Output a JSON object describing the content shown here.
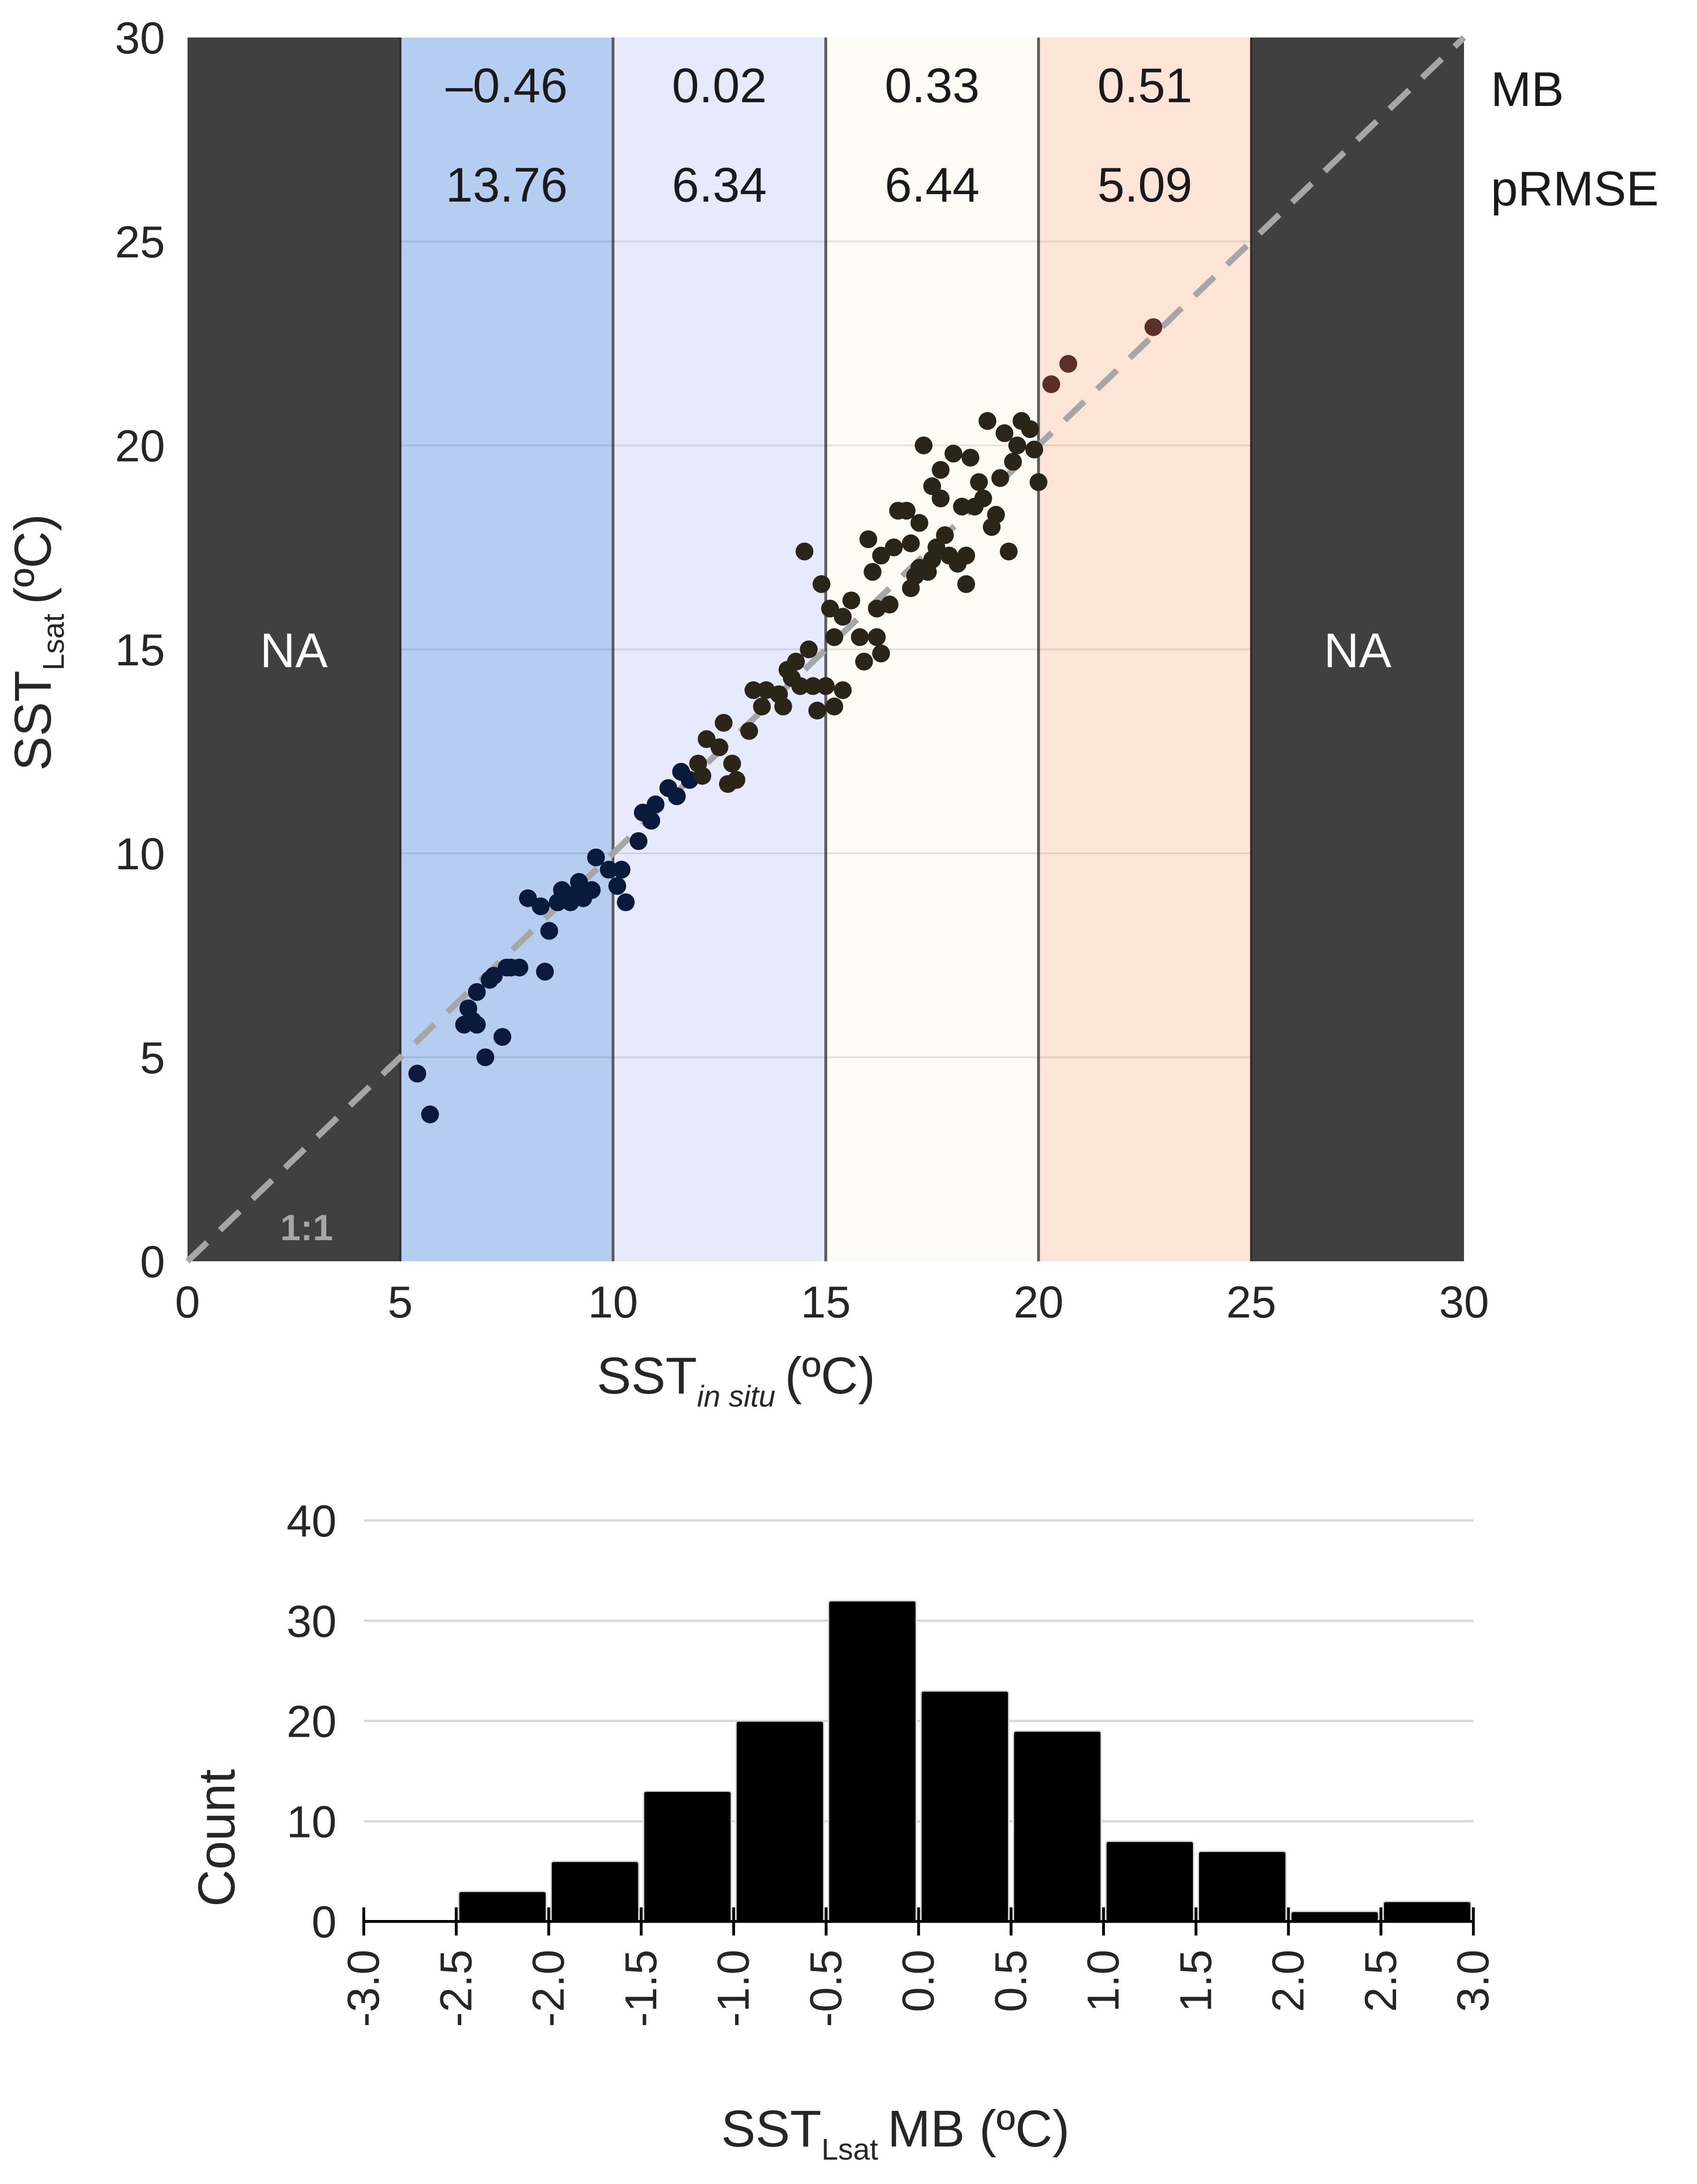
{
  "chart_data": [
    {
      "type": "scatter",
      "title": "",
      "xlabel": {
        "main": "SST",
        "sub": "in situ",
        "unit": "(ºC)"
      },
      "ylabel": {
        "main": "SST",
        "sub": "Lsat",
        "unit": "(ºC)"
      },
      "xlim": [
        0,
        30
      ],
      "ylim": [
        0,
        30
      ],
      "xticks": [
        "0",
        "5",
        "10",
        "15",
        "20",
        "25",
        "30"
      ],
      "yticks": [
        "0",
        "5",
        "10",
        "15",
        "20",
        "25",
        "30"
      ],
      "grid": true,
      "bands": [
        {
          "range": [
            0,
            5
          ],
          "color": "#404040",
          "label": "NA"
        },
        {
          "range": [
            5,
            10
          ],
          "color": "#b4cdf0",
          "mb": "–0.46",
          "prmse": "13.76"
        },
        {
          "range": [
            10,
            15
          ],
          "color": "#e7e9fc",
          "mb": "0.02",
          "prmse": "6.34"
        },
        {
          "range": [
            15,
            20
          ],
          "color": "#fcfbf4",
          "mb": "0.33",
          "prmse": "6.44"
        },
        {
          "range": [
            20,
            25
          ],
          "color": "#fce4d6",
          "mb": "0.51",
          "prmse": "5.09"
        },
        {
          "range": [
            25,
            30
          ],
          "color": "#404040",
          "label": "NA"
        }
      ],
      "row_labels": [
        "MB",
        "pRMSE"
      ],
      "reference_line": {
        "label": "1:1",
        "color": "#a6a6a6"
      },
      "colors": {
        "cold": "#0a1a3d",
        "warm": "#2b2419",
        "hot": "#5a3028"
      },
      "points": [
        [
          5.4,
          4.6
        ],
        [
          5.7,
          3.6
        ],
        [
          6.5,
          5.8
        ],
        [
          6.6,
          6.2
        ],
        [
          6.7,
          5.9
        ],
        [
          6.8,
          5.8
        ],
        [
          6.8,
          6.6
        ],
        [
          7.0,
          5.0
        ],
        [
          7.1,
          6.9
        ],
        [
          7.2,
          7.0
        ],
        [
          7.4,
          5.5
        ],
        [
          7.5,
          7.2
        ],
        [
          7.6,
          7.2
        ],
        [
          7.8,
          7.2
        ],
        [
          8.0,
          8.9
        ],
        [
          8.3,
          8.7
        ],
        [
          8.4,
          7.1
        ],
        [
          8.5,
          8.1
        ],
        [
          8.7,
          8.8
        ],
        [
          8.8,
          9.1
        ],
        [
          9.0,
          8.8
        ],
        [
          9.1,
          9.0
        ],
        [
          9.2,
          9.3
        ],
        [
          9.3,
          8.9
        ],
        [
          9.5,
          9.1
        ],
        [
          9.6,
          9.9
        ],
        [
          9.9,
          9.6
        ],
        [
          10.1,
          9.2
        ],
        [
          10.2,
          9.6
        ],
        [
          10.3,
          8.8
        ],
        [
          10.6,
          10.3
        ],
        [
          10.7,
          11.0
        ],
        [
          10.9,
          10.8
        ],
        [
          11.0,
          11.2
        ],
        [
          11.3,
          11.6
        ],
        [
          11.5,
          11.4
        ],
        [
          11.6,
          12.0
        ],
        [
          11.8,
          11.8
        ],
        [
          12.0,
          12.2
        ],
        [
          12.1,
          11.9
        ],
        [
          12.2,
          12.8
        ],
        [
          12.5,
          12.6
        ],
        [
          12.6,
          13.2
        ],
        [
          12.7,
          11.7
        ],
        [
          12.8,
          12.2
        ],
        [
          12.9,
          11.8
        ],
        [
          13.2,
          13.0
        ],
        [
          13.3,
          14.0
        ],
        [
          13.5,
          13.6
        ],
        [
          13.6,
          14.0
        ],
        [
          13.9,
          13.9
        ],
        [
          14.0,
          13.6
        ],
        [
          14.1,
          14.5
        ],
        [
          14.2,
          14.3
        ],
        [
          14.3,
          14.7
        ],
        [
          14.4,
          14.1
        ],
        [
          14.5,
          17.4
        ],
        [
          14.6,
          15.0
        ],
        [
          14.7,
          14.1
        ],
        [
          14.8,
          13.5
        ],
        [
          14.9,
          16.6
        ],
        [
          15.0,
          14.1
        ],
        [
          15.1,
          16.0
        ],
        [
          15.2,
          13.6
        ],
        [
          15.2,
          15.3
        ],
        [
          15.4,
          15.8
        ],
        [
          15.4,
          14.0
        ],
        [
          15.6,
          16.2
        ],
        [
          15.8,
          15.3
        ],
        [
          15.9,
          14.7
        ],
        [
          16.0,
          17.7
        ],
        [
          16.1,
          16.9
        ],
        [
          16.2,
          15.3
        ],
        [
          16.2,
          16.0
        ],
        [
          16.3,
          17.3
        ],
        [
          16.3,
          14.9
        ],
        [
          16.5,
          16.1
        ],
        [
          16.6,
          17.5
        ],
        [
          16.7,
          18.4
        ],
        [
          16.9,
          18.4
        ],
        [
          17.0,
          17.6
        ],
        [
          17.0,
          16.5
        ],
        [
          17.1,
          16.8
        ],
        [
          17.2,
          18.1
        ],
        [
          17.2,
          17.0
        ],
        [
          17.3,
          20.0
        ],
        [
          17.4,
          16.9
        ],
        [
          17.5,
          17.2
        ],
        [
          17.5,
          19.0
        ],
        [
          17.6,
          17.5
        ],
        [
          17.7,
          18.7
        ],
        [
          17.7,
          19.4
        ],
        [
          17.8,
          17.8
        ],
        [
          17.9,
          17.3
        ],
        [
          18.0,
          19.8
        ],
        [
          18.1,
          17.1
        ],
        [
          18.2,
          18.5
        ],
        [
          18.3,
          16.6
        ],
        [
          18.3,
          17.3
        ],
        [
          18.4,
          19.7
        ],
        [
          18.5,
          18.5
        ],
        [
          18.6,
          19.1
        ],
        [
          18.7,
          18.7
        ],
        [
          18.8,
          20.6
        ],
        [
          18.9,
          18.0
        ],
        [
          19.0,
          18.3
        ],
        [
          19.1,
          19.2
        ],
        [
          19.2,
          20.3
        ],
        [
          19.3,
          17.4
        ],
        [
          19.4,
          19.6
        ],
        [
          19.5,
          20.0
        ],
        [
          19.6,
          20.6
        ],
        [
          19.8,
          20.4
        ],
        [
          19.9,
          19.9
        ],
        [
          20.0,
          19.1
        ],
        [
          20.3,
          21.5
        ],
        [
          20.7,
          22.0
        ],
        [
          22.7,
          22.9
        ]
      ]
    },
    {
      "type": "bar",
      "title": "",
      "xlabel": {
        "main": "SST",
        "sub": "Lsat",
        "unit": "MB (ºC)"
      },
      "ylabel": "Count",
      "ylim": [
        0,
        40
      ],
      "yticks": [
        "0",
        "10",
        "20",
        "30",
        "40"
      ],
      "xticks": [
        "-3.0",
        "-2.5",
        "-2.0",
        "-1.5",
        "-1.0",
        "-0.5",
        "0.0",
        "0.5",
        "1.0",
        "1.5",
        "2.0",
        "2.5",
        "3.0"
      ],
      "categories": [
        "-3.0 to -2.5",
        "-2.5 to -2.0",
        "-2.0 to -1.5",
        "-1.5 to -1.0",
        "-1.0 to -0.5",
        "-0.5 to 0.0",
        "0.0 to 0.5",
        "0.5 to 1.0",
        "1.0 to 1.5",
        "1.5 to 2.0",
        "2.0 to 2.5",
        "2.5 to 3.0"
      ],
      "values": [
        0,
        3,
        6,
        13,
        20,
        32,
        23,
        19,
        8,
        7,
        1,
        2
      ],
      "grid": true,
      "colors": {
        "bar": "#000000",
        "grid": "#d9d9d9"
      }
    }
  ]
}
